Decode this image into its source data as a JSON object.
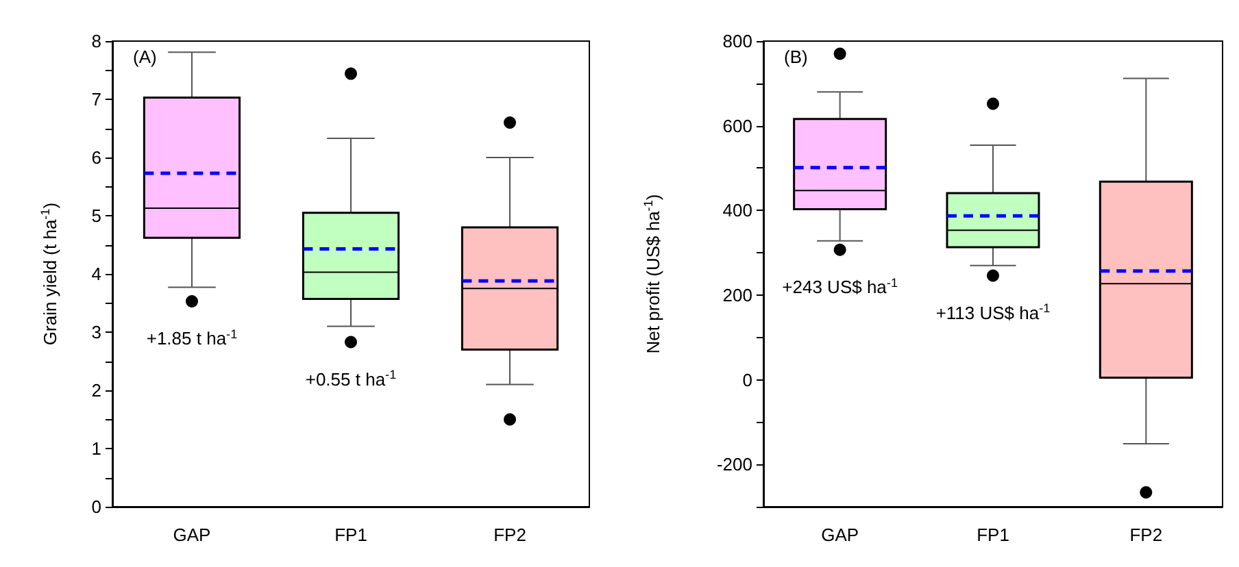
{
  "chart_data": [
    {
      "type": "box",
      "title": "(A)",
      "ylabel": "Grain yield (t ha$^{-1}$)",
      "categories": [
        "GAP",
        "FP1",
        "FP2"
      ],
      "colors": [
        "#ffc0ff",
        "#c0ffc0",
        "#ffc0c0"
      ],
      "marker": "circle",
      "grid": false,
      "boxes": [
        {
          "low": 3.77,
          "q1": 4.62,
          "median": 5.13,
          "q3": 7.03,
          "high": 7.81,
          "mean": 5.73,
          "outliers": [
            3.53
          ]
        },
        {
          "low": 3.1,
          "q1": 3.57,
          "median": 4.03,
          "q3": 5.05,
          "high": 6.33,
          "mean": 4.43,
          "outliers": [
            7.44,
            2.83
          ]
        },
        {
          "low": 2.1,
          "q1": 2.7,
          "median": 3.75,
          "q3": 4.8,
          "high": 6.0,
          "mean": 3.88,
          "outliers": [
            6.6,
            1.5
          ]
        }
      ],
      "ylim": [
        0,
        8
      ],
      "yticks": [
        0,
        {
          "value": 0.5,
          "label": null
        },
        1,
        {
          "value": 1.5,
          "label": null
        },
        2,
        {
          "value": 2.5,
          "label": null
        },
        3,
        {
          "value": 3.5,
          "label": null
        },
        4,
        {
          "value": 4.5,
          "label": null
        },
        5,
        {
          "value": 5.5,
          "label": null
        },
        6,
        {
          "value": 6.5,
          "label": null
        },
        7,
        {
          "value": 7.5,
          "label": null
        },
        8
      ],
      "annotations": [
        "+1.85 t ha$^{-1}$",
        "+0.55 t ha$^{-1}$"
      ]
    },
    {
      "type": "box",
      "title": "(B)",
      "ylabel": "Net profit (US$ ha$^{-1}$)",
      "categories": [
        "GAP",
        "FP1",
        "FP2"
      ],
      "colors": [
        "#ffc0ff",
        "#c0ffc0",
        "#ffc0c0"
      ],
      "marker": "circle",
      "grid": false,
      "boxes": [
        {
          "low": 328,
          "q1": 403,
          "median": 447,
          "q3": 616,
          "high": 680,
          "mean": 501,
          "outliers": [
            770,
            307
          ]
        },
        {
          "low": 270,
          "q1": 313,
          "median": 353,
          "q3": 441,
          "high": 554,
          "mean": 387,
          "outliers": [
            652,
            246
          ]
        },
        {
          "low": -151,
          "q1": 5,
          "median": 227,
          "q3": 468,
          "high": 712,
          "mean": 257,
          "outliers": [
            -266
          ]
        }
      ],
      "ylim": [
        -300,
        800
      ],
      "yticks": [
        {
          "value": -300,
          "label": null
        },
        -200,
        {
          "value": -100,
          "label": null
        },
        0,
        {
          "value": 100,
          "label": null
        },
        200,
        {
          "value": 300,
          "label": null
        },
        400,
        {
          "value": 500,
          "label": null
        },
        600,
        {
          "value": 700,
          "label": null
        },
        800
      ],
      "annotations": [
        "+243 US$ ha$^{-1}$",
        "+113 US$ ha$^{-1}$"
      ]
    }
  ]
}
